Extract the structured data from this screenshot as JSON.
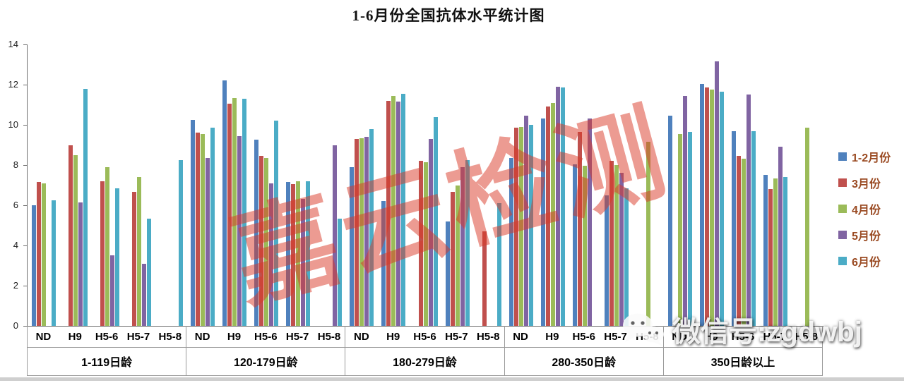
{
  "title": "1-6月份全国抗体水平统计图",
  "watermark": {
    "diagonal_text": "嘉云检测",
    "wechat_icon": "wechat-logo",
    "wechat_text": "微信号:zgdwbj"
  },
  "chart_data": {
    "type": "bar",
    "title": "1-6月份全国抗体水平统计图",
    "xlabel": "",
    "ylabel": "",
    "ylim": [
      0,
      14
    ],
    "yticks": [
      0,
      2,
      4,
      6,
      8,
      10,
      12,
      14
    ],
    "grid": false,
    "legend_position": "right",
    "series_names": [
      "1-2月份",
      "3月份",
      "4月份",
      "5月份",
      "6月份"
    ],
    "series_colors": [
      "#4f81bd",
      "#c0504d",
      "#9bbb59",
      "#8064a2",
      "#4bacc6"
    ],
    "groups": [
      {
        "label": "1-119日龄",
        "clusters": [
          {
            "category": "ND",
            "values": [
              6.0,
              7.15,
              7.1,
              null,
              6.25
            ]
          },
          {
            "category": "H9",
            "values": [
              null,
              9.0,
              8.5,
              6.15,
              11.8
            ]
          },
          {
            "category": "H5-6",
            "values": [
              null,
              7.2,
              7.9,
              3.5,
              6.85
            ]
          },
          {
            "category": "H5-7",
            "values": [
              null,
              6.65,
              7.4,
              3.1,
              5.35
            ]
          },
          {
            "category": "H5-8",
            "values": [
              null,
              null,
              null,
              null,
              8.25
            ]
          }
        ]
      },
      {
        "label": "120-179日龄",
        "clusters": [
          {
            "category": "ND",
            "values": [
              10.25,
              9.6,
              9.55,
              8.35,
              9.85
            ]
          },
          {
            "category": "H9",
            "values": [
              12.2,
              11.05,
              11.35,
              9.45,
              11.3
            ]
          },
          {
            "category": "H5-6",
            "values": [
              9.25,
              8.45,
              8.35,
              7.1,
              10.2
            ]
          },
          {
            "category": "H5-7",
            "values": [
              7.15,
              7.05,
              7.2,
              6.3,
              7.2
            ]
          },
          {
            "category": "H5-8",
            "values": [
              null,
              null,
              null,
              9.0,
              5.35
            ]
          }
        ]
      },
      {
        "label": "180-279日龄",
        "clusters": [
          {
            "category": "ND",
            "values": [
              7.9,
              9.3,
              9.35,
              9.4,
              9.8
            ]
          },
          {
            "category": "H9",
            "values": [
              6.2,
              11.2,
              11.45,
              11.15,
              11.55
            ]
          },
          {
            "category": "H5-6",
            "values": [
              null,
              8.2,
              8.15,
              9.3,
              10.4
            ]
          },
          {
            "category": "H5-7",
            "values": [
              5.2,
              6.65,
              7.0,
              7.9,
              8.25
            ]
          },
          {
            "category": "H5-8",
            "values": [
              null,
              4.7,
              null,
              null,
              6.1
            ]
          }
        ]
      },
      {
        "label": "280-350日龄",
        "clusters": [
          {
            "category": "ND",
            "values": [
              8.35,
              9.85,
              9.9,
              10.45,
              10.0
            ]
          },
          {
            "category": "H9",
            "values": [
              10.3,
              10.9,
              11.1,
              11.9,
              11.85
            ]
          },
          {
            "category": "H5-6",
            "values": [
              8.05,
              9.65,
              7.95,
              10.3,
              null
            ]
          },
          {
            "category": "H5-7",
            "values": [
              6.5,
              8.2,
              8.0,
              7.6,
              6.85
            ]
          },
          {
            "category": "H5-8",
            "values": [
              null,
              null,
              9.15,
              null,
              null
            ]
          }
        ]
      },
      {
        "label": "350日龄以上",
        "clusters": [
          {
            "category": "ND",
            "values": [
              10.45,
              null,
              9.55,
              11.45,
              9.65
            ]
          },
          {
            "category": "H9",
            "values": [
              12.05,
              11.85,
              11.75,
              13.15,
              11.65
            ]
          },
          {
            "category": "H5-6",
            "values": [
              9.7,
              8.45,
              8.3,
              11.5,
              9.7
            ]
          },
          {
            "category": "H5-7",
            "values": [
              7.5,
              6.8,
              7.35,
              8.9,
              7.4
            ]
          },
          {
            "category": "H5-8",
            "values": [
              null,
              null,
              9.85,
              null,
              null
            ]
          }
        ]
      }
    ]
  }
}
